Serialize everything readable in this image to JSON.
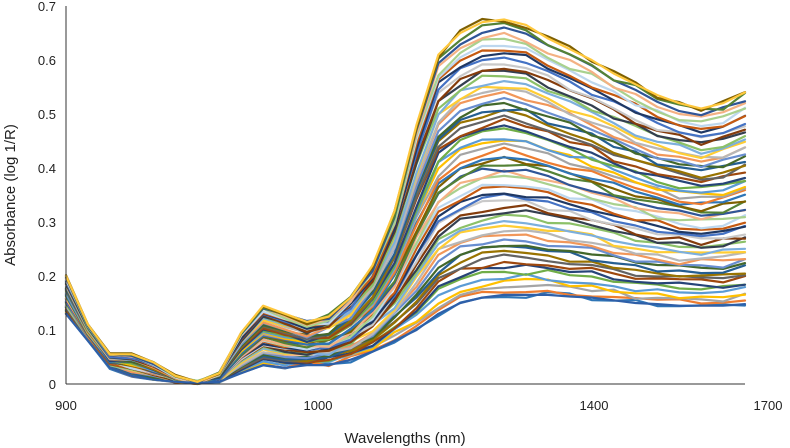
{
  "chart_data": {
    "type": "line",
    "title": "",
    "xlabel": "Wavelengths (nm)",
    "ylabel": "Absorbance (log 1/R)",
    "xlim": [
      900,
      1700
    ],
    "ylim": [
      0,
      0.7
    ],
    "x_ticks": [
      "900",
      "1000",
      "1400",
      "1700"
    ],
    "y_ticks": [
      "0",
      "0.1",
      "0.2",
      "0.3",
      "0.4",
      "0.5",
      "0.6",
      "0.7"
    ],
    "grid": false,
    "legend": "none",
    "x": [
      908,
      915,
      930,
      950,
      975,
      1000,
      1025,
      1050,
      1075,
      1100,
      1125,
      1150,
      1175,
      1200,
      1225,
      1250,
      1275,
      1300,
      1325,
      1350,
      1375,
      1400,
      1425,
      1450,
      1475,
      1500,
      1525,
      1550,
      1575,
      1600,
      1625,
      1650
    ],
    "series_note_count": 60,
    "template_low": [
      0.13,
      0.08,
      0.03,
      0.015,
      0.008,
      0.004,
      0.002,
      0.004,
      0.02,
      0.035,
      0.03,
      0.035,
      0.035,
      0.045,
      0.06,
      0.08,
      0.1,
      0.13,
      0.15,
      0.16,
      0.165,
      0.165,
      0.165,
      0.162,
      0.16,
      0.155,
      0.15,
      0.148,
      0.145,
      0.145,
      0.145,
      0.148
    ],
    "template_high": [
      0.2,
      0.11,
      0.055,
      0.055,
      0.04,
      0.015,
      0.004,
      0.02,
      0.095,
      0.145,
      0.13,
      0.115,
      0.125,
      0.16,
      0.22,
      0.32,
      0.48,
      0.61,
      0.65,
      0.67,
      0.675,
      0.665,
      0.64,
      0.62,
      0.6,
      0.575,
      0.555,
      0.535,
      0.52,
      0.51,
      0.52,
      0.54
    ],
    "palette": [
      "#2e75b6",
      "#ed7d31",
      "#a5a5a5",
      "#ffc000",
      "#5b9bd5",
      "#70ad47",
      "#264478",
      "#9e480e",
      "#636363",
      "#997300",
      "#255e91",
      "#43682b",
      "#698ed0",
      "#f1975a",
      "#b7b7b7",
      "#ffcd33",
      "#7cafdd",
      "#8cc168",
      "#333f50",
      "#843c0c",
      "#c9c9c9",
      "#4472c4",
      "#1f3864",
      "#c55a11",
      "#bdd7ee",
      "#a9d18e",
      "#f4b183",
      "#2f5597",
      "#548235",
      "#7f6000"
    ]
  }
}
